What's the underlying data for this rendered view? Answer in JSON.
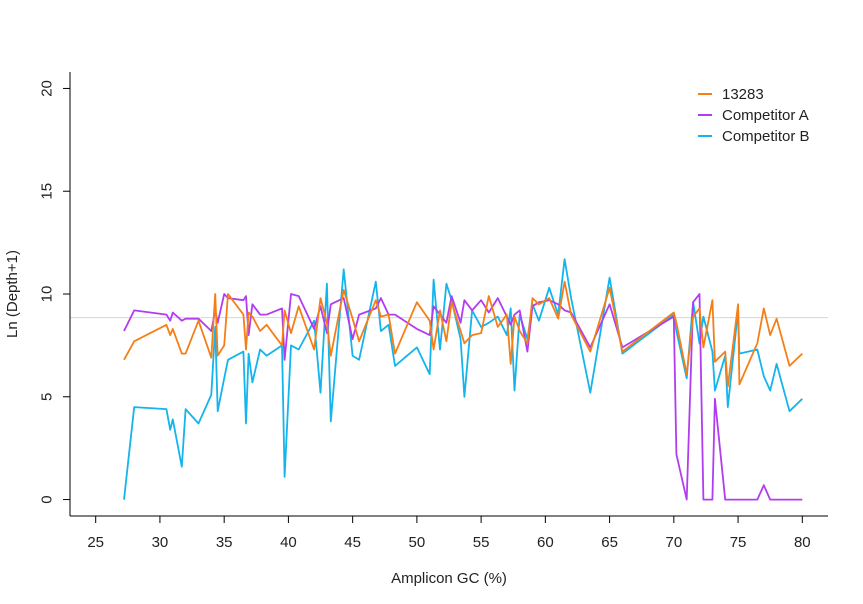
{
  "chart_data": {
    "type": "line",
    "xlabel": "Amplicon GC (%)",
    "ylabel": "Ln (Depth+1)",
    "xlim": [
      23,
      82
    ],
    "ylim": [
      -0.8,
      20.8
    ],
    "xticks": [
      25,
      30,
      35,
      40,
      45,
      50,
      55,
      60,
      65,
      70,
      75,
      80
    ],
    "yticks": [
      0,
      5,
      10,
      15,
      20
    ],
    "reference_line": 8.85,
    "legend_position": "top-right",
    "series": [
      {
        "name": "13283",
        "color": "#f57f17",
        "x": [
          27.2,
          28.0,
          30.5,
          30.8,
          31.0,
          31.7,
          32.0,
          33.0,
          34.0,
          34.3,
          34.5,
          35.0,
          35.3,
          36.5,
          36.7,
          36.9,
          37.2,
          37.8,
          38.3,
          39.5,
          39.7,
          40.2,
          40.8,
          42.0,
          42.5,
          43.0,
          43.3,
          44.3,
          45.0,
          45.5,
          46.8,
          47.2,
          47.8,
          48.3,
          50.0,
          51.0,
          51.3,
          51.8,
          52.3,
          52.7,
          53.4,
          53.7,
          54.3,
          55.0,
          55.6,
          56.3,
          57.0,
          57.3,
          57.6,
          58.0,
          58.6,
          59.0,
          59.5,
          60.3,
          61.0,
          61.5,
          62.0,
          63.5,
          65.0,
          66.0,
          70.0,
          70.2,
          71.0,
          71.5,
          72.0,
          72.3,
          73.0,
          73.2,
          74.0,
          74.2,
          75.0,
          75.1,
          76.5,
          77.0,
          77.5,
          78.0,
          79.0,
          80.0
        ],
        "y": [
          6.8,
          7.7,
          8.5,
          8.0,
          8.3,
          7.1,
          7.1,
          8.7,
          6.9,
          10.0,
          7.0,
          7.5,
          10.0,
          9.0,
          7.3,
          9.1,
          8.9,
          8.2,
          8.5,
          7.5,
          9.2,
          8.1,
          9.4,
          7.3,
          9.8,
          8.6,
          7.0,
          10.2,
          8.8,
          7.7,
          9.7,
          8.9,
          9.0,
          7.1,
          9.6,
          8.7,
          7.3,
          9.2,
          7.7,
          9.6,
          8.2,
          7.6,
          8.0,
          8.1,
          9.9,
          8.4,
          9.0,
          6.6,
          8.9,
          8.2,
          7.6,
          9.8,
          9.5,
          9.8,
          8.8,
          10.6,
          9.0,
          7.2,
          10.3,
          7.2,
          9.1,
          8.6,
          6.1,
          8.9,
          9.3,
          7.4,
          9.7,
          6.7,
          7.2,
          5.5,
          9.5,
          5.6,
          7.6,
          9.3,
          8.0,
          8.8,
          6.5,
          7.1
        ]
      },
      {
        "name": "Competitor A",
        "color": "#b23cf0",
        "x": [
          27.2,
          28.0,
          30.5,
          30.8,
          31.0,
          31.7,
          32.0,
          33.0,
          34.0,
          34.3,
          34.5,
          35.0,
          35.3,
          36.5,
          36.7,
          36.9,
          37.2,
          37.8,
          38.3,
          39.5,
          39.7,
          40.2,
          40.8,
          42.0,
          42.5,
          43.0,
          43.3,
          44.3,
          45.0,
          45.5,
          46.8,
          47.2,
          47.8,
          48.3,
          50.0,
          51.0,
          51.3,
          51.8,
          52.3,
          52.7,
          53.4,
          53.7,
          54.3,
          55.0,
          55.6,
          56.3,
          57.0,
          57.3,
          57.6,
          58.0,
          58.6,
          59.0,
          59.5,
          60.3,
          61.0,
          61.5,
          62.0,
          63.5,
          65.0,
          66.0,
          70.0,
          70.2,
          71.0,
          71.5,
          72.0,
          72.3,
          73.0,
          73.2,
          74.0,
          74.2,
          75.0,
          75.1,
          76.5,
          77.0,
          77.5,
          78.0,
          79.0,
          80.0
        ],
        "y": [
          8.2,
          9.2,
          9.0,
          8.7,
          9.1,
          8.7,
          8.8,
          8.8,
          8.2,
          9.2,
          8.6,
          10.0,
          9.8,
          9.7,
          9.9,
          8.0,
          9.5,
          9.0,
          9.0,
          9.3,
          6.8,
          10.0,
          9.9,
          8.3,
          9.4,
          8.1,
          9.5,
          9.8,
          7.8,
          9.0,
          9.3,
          9.8,
          9.0,
          9.0,
          8.3,
          8.0,
          9.4,
          9.0,
          8.6,
          9.9,
          8.6,
          9.7,
          9.2,
          9.7,
          9.1,
          9.8,
          8.9,
          8.5,
          9.0,
          9.2,
          7.2,
          9.4,
          9.6,
          9.7,
          9.5,
          9.2,
          9.1,
          7.4,
          9.5,
          7.4,
          8.9,
          2.2,
          0.0,
          9.6,
          10.0,
          0.0,
          0.0,
          4.9,
          0.0,
          0.0,
          0.0,
          0.0,
          0.0,
          0.7,
          0.0,
          0.0,
          0.0,
          0.0
        ]
      },
      {
        "name": "Competitor B",
        "color": "#14b4ec",
        "x": [
          27.2,
          28.0,
          30.5,
          30.8,
          31.0,
          31.7,
          32.0,
          33.0,
          34.0,
          34.3,
          34.5,
          35.0,
          35.3,
          36.5,
          36.7,
          36.9,
          37.2,
          37.8,
          38.3,
          39.5,
          39.7,
          40.2,
          40.8,
          42.0,
          42.5,
          43.0,
          43.3,
          44.3,
          45.0,
          45.5,
          46.8,
          47.2,
          47.8,
          48.3,
          50.0,
          51.0,
          51.3,
          51.8,
          52.3,
          52.7,
          53.4,
          53.7,
          54.3,
          55.0,
          55.6,
          56.3,
          57.0,
          57.3,
          57.6,
          58.0,
          58.6,
          59.0,
          59.5,
          60.3,
          61.0,
          61.5,
          62.0,
          63.5,
          65.0,
          66.0,
          70.0,
          70.2,
          71.0,
          71.5,
          72.0,
          72.3,
          73.0,
          73.2,
          74.0,
          74.2,
          75.0,
          75.1,
          76.5,
          77.0,
          77.5,
          78.0,
          79.0,
          80.0
        ],
        "y": [
          0.0,
          4.5,
          4.4,
          3.4,
          3.9,
          1.6,
          4.4,
          3.7,
          5.1,
          8.4,
          4.3,
          5.9,
          6.8,
          7.2,
          3.7,
          7.1,
          5.7,
          7.3,
          7.0,
          7.5,
          1.1,
          7.5,
          7.3,
          8.7,
          5.2,
          10.5,
          3.8,
          11.2,
          7.0,
          6.8,
          10.6,
          8.2,
          8.5,
          6.5,
          7.4,
          6.1,
          10.7,
          7.3,
          10.5,
          9.7,
          7.8,
          5.0,
          9.2,
          8.4,
          8.6,
          8.9,
          8.0,
          9.3,
          5.3,
          9.0,
          7.8,
          9.5,
          8.7,
          10.3,
          9.0,
          11.7,
          9.8,
          5.2,
          10.8,
          7.1,
          9.0,
          8.2,
          5.9,
          9.6,
          7.6,
          8.9,
          7.2,
          5.3,
          7.0,
          4.5,
          9.2,
          7.1,
          7.3,
          6.0,
          5.3,
          6.6,
          4.3,
          4.9
        ]
      }
    ]
  }
}
